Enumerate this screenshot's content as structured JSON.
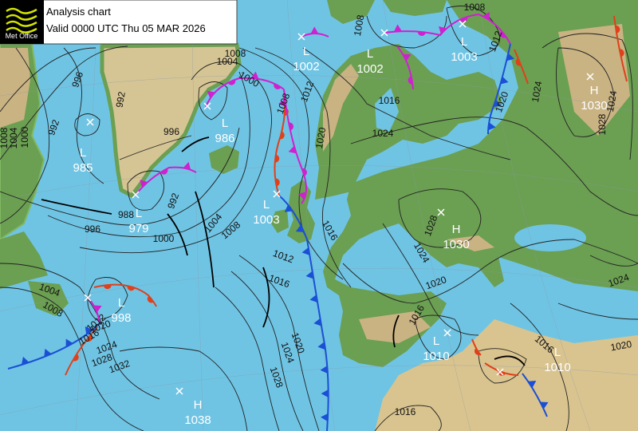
{
  "header": {
    "logo": "Met Office",
    "title": "Analysis chart",
    "valid": "Valid 0000 UTC Thu 05 MAR 2026"
  },
  "pressure_centers": [
    {
      "type": "L",
      "value": 985
    },
    {
      "type": "L",
      "value": 979
    },
    {
      "type": "L",
      "value": 986
    },
    {
      "type": "L",
      "value": 1002
    },
    {
      "type": "L",
      "value": 1002
    },
    {
      "type": "L",
      "value": 1003
    },
    {
      "type": "H",
      "value": 1030
    },
    {
      "type": "L",
      "value": 1003
    },
    {
      "type": "H",
      "value": 1030
    },
    {
      "type": "L",
      "value": 998
    },
    {
      "type": "L",
      "value": 1010
    },
    {
      "type": "L",
      "value": 1010
    },
    {
      "type": "H",
      "value": 1038
    }
  ],
  "isobar_labels": [
    996,
    992,
    992,
    1000,
    1004,
    1008,
    996,
    988,
    996,
    992,
    1000,
    1004,
    1008,
    1004,
    1008,
    1000,
    1008,
    1012,
    1016,
    1020,
    1024,
    1024,
    1020,
    1012,
    1008,
    1008,
    1016,
    1012,
    1016,
    1028,
    1024,
    1020,
    1016,
    1016,
    1020,
    1024,
    1028,
    1032,
    1028,
    1024,
    1020,
    1012,
    1016,
    1004,
    1008,
    1024,
    1020,
    1016,
    1028,
    1024
  ]
}
